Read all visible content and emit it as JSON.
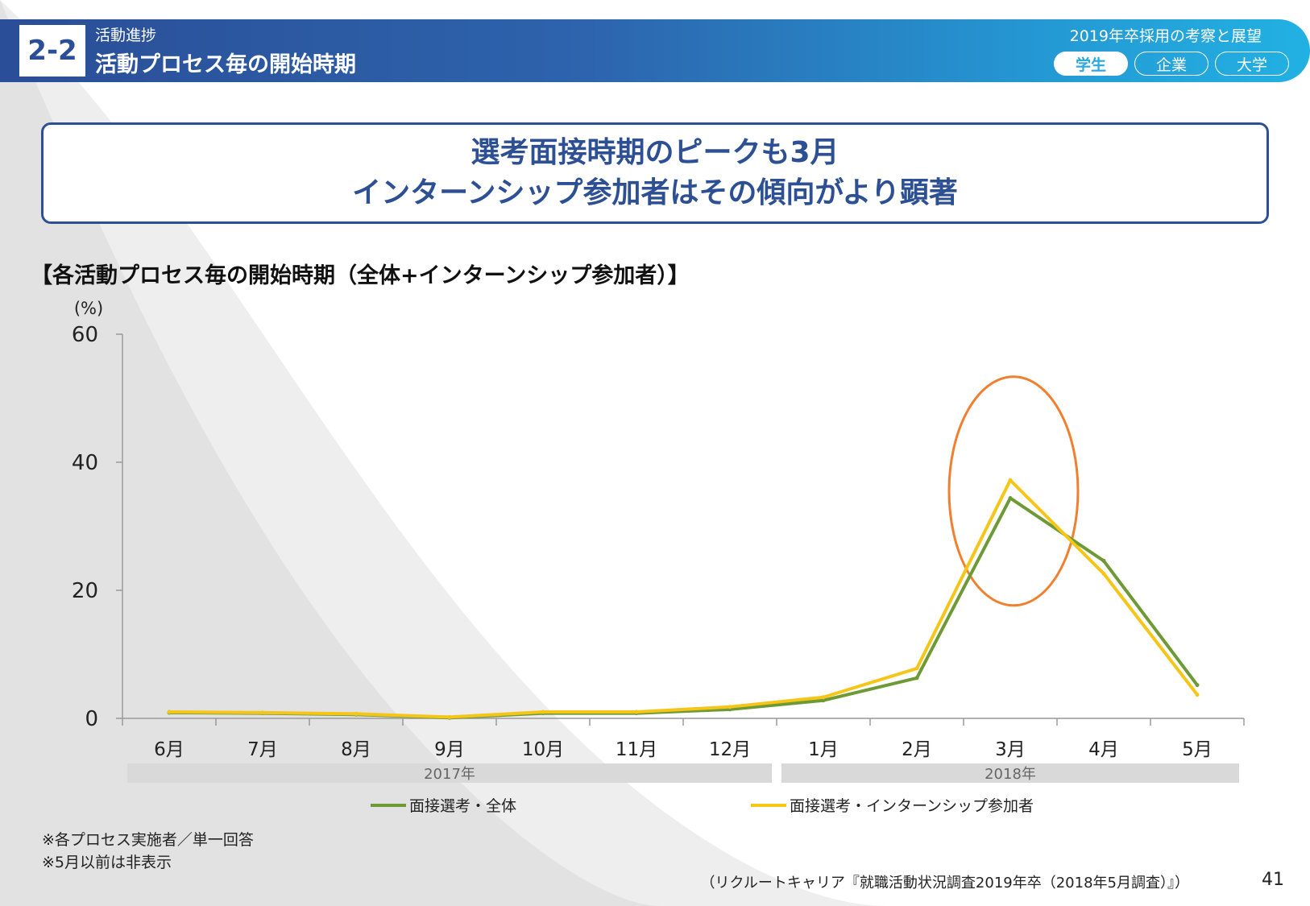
{
  "header": {
    "section_number": "2-2",
    "section_sub": "活動進捗",
    "section_title": "活動プロセス毎の開始時期",
    "report_title": "2019年卒採用の考察と展望",
    "tabs": [
      "学生",
      "企業",
      "大学"
    ],
    "active_tab": "学生"
  },
  "headline": {
    "line1": "選考面接時期のピークも3月",
    "line2": "インターンシップ参加者はその傾向がより顕著"
  },
  "chart_data": {
    "type": "line",
    "title": "【各活動プロセス毎の開始時期（全体+インターンシップ参加者）】",
    "ylabel": "(%)",
    "ylim": [
      0,
      60
    ],
    "yticks": [
      0,
      20,
      40,
      60
    ],
    "categories": [
      "6月",
      "7月",
      "8月",
      "9月",
      "10月",
      "11月",
      "12月",
      "1月",
      "2月",
      "3月",
      "4月",
      "5月"
    ],
    "year_groups": [
      {
        "label": "2017年",
        "from": 0,
        "to": 6
      },
      {
        "label": "2018年",
        "from": 7,
        "to": 11
      }
    ],
    "series": [
      {
        "name": "面接選考・全体",
        "color": "#6d9a36",
        "values": [
          0.9,
          0.8,
          0.6,
          0.1,
          0.8,
          0.8,
          1.4,
          2.8,
          6.3,
          34.4,
          24.6,
          5.2
        ]
      },
      {
        "name": "面接選考・インターンシップ参加者",
        "color": "#f5c518",
        "values": [
          1.0,
          0.9,
          0.7,
          0.2,
          1.0,
          1.0,
          1.8,
          3.3,
          7.8,
          37.2,
          22.6,
          3.7
        ]
      }
    ],
    "highlight": {
      "category": "3月",
      "color": "#f08030"
    },
    "legend_position": "bottom"
  },
  "notes": [
    "※各プロセス実施者／単一回答",
    "※5月以前は非表示"
  ],
  "source": "（リクルートキャリア『就職活動状況調査2019年卒（2018年5月調査）』）",
  "page_number": "41"
}
